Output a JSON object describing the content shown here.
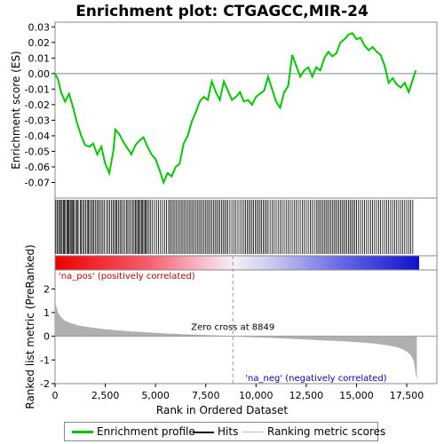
{
  "chart_data": {
    "type": "line",
    "title": "Enrichment plot: CTGAGCC,MIR-24",
    "es_panel": {
      "ylabel": "Enrichment score (ES)",
      "ylim": [
        -0.08,
        0.033
      ],
      "yticks": [
        "0.03",
        "0.02",
        "0.01",
        "0.00",
        "-0.01",
        "-0.02",
        "-0.03",
        "-0.04",
        "-0.05",
        "-0.06",
        "-0.07"
      ],
      "ytick_values": [
        0.03,
        0.02,
        0.01,
        0.0,
        -0.01,
        -0.02,
        -0.03,
        -0.04,
        -0.05,
        -0.06,
        -0.07
      ],
      "series": [
        {
          "name": "Enrichment profile",
          "color": "#00cc00",
          "x": [
            0,
            150,
            300,
            500,
            700,
            900,
            1100,
            1300,
            1500,
            1700,
            1900,
            2100,
            2300,
            2500,
            2700,
            2900,
            3000,
            3200,
            3400,
            3600,
            3800,
            4000,
            4200,
            4400,
            4600,
            4800,
            5000,
            5200,
            5400,
            5600,
            5800,
            6000,
            6200,
            6400,
            6600,
            6800,
            7000,
            7200,
            7400,
            7600,
            7800,
            8000,
            8200,
            8400,
            8600,
            8800,
            9000,
            9200,
            9400,
            9600,
            9800,
            10000,
            10200,
            10400,
            10600,
            10800,
            11000,
            11200,
            11400,
            11600,
            11800,
            12000,
            12200,
            12400,
            12600,
            12800,
            13000,
            13200,
            13400,
            13600,
            13800,
            14000,
            14200,
            14400,
            14600,
            14800,
            15000,
            15200,
            15400,
            15600,
            15800,
            16000,
            16200,
            16400,
            16600,
            16800,
            17000,
            17200,
            17400,
            17600,
            17800,
            17950
          ],
          "y": [
            0.0,
            -0.004,
            -0.012,
            -0.018,
            -0.013,
            -0.022,
            -0.032,
            -0.04,
            -0.046,
            -0.047,
            -0.045,
            -0.052,
            -0.047,
            -0.058,
            -0.064,
            -0.05,
            -0.036,
            -0.039,
            -0.044,
            -0.048,
            -0.052,
            -0.046,
            -0.043,
            -0.041,
            -0.047,
            -0.052,
            -0.055,
            -0.062,
            -0.07,
            -0.064,
            -0.066,
            -0.06,
            -0.058,
            -0.045,
            -0.04,
            -0.031,
            -0.025,
            -0.018,
            -0.015,
            -0.017,
            -0.005,
            -0.012,
            -0.017,
            -0.005,
            -0.011,
            -0.017,
            -0.015,
            -0.012,
            -0.018,
            -0.017,
            -0.02,
            -0.015,
            -0.013,
            -0.011,
            -0.002,
            -0.01,
            -0.018,
            -0.022,
            -0.012,
            -0.008,
            0.012,
            0.005,
            -0.002,
            0.002,
            0.004,
            -0.002,
            0.004,
            0.002,
            0.01,
            0.014,
            0.011,
            0.013,
            0.02,
            0.022,
            0.025,
            0.026,
            0.022,
            0.023,
            0.018,
            0.015,
            0.017,
            0.014,
            0.012,
            0.005,
            -0.006,
            -0.003,
            -0.007,
            -0.009,
            -0.006,
            -0.012,
            -0.004,
            0.002
          ]
        }
      ]
    },
    "hits": [
      40,
      110,
      180,
      230,
      300,
      350,
      420,
      470,
      520,
      600,
      640,
      690,
      750,
      800,
      850,
      900,
      960,
      1050,
      1100,
      1150,
      1250,
      1300,
      1380,
      1450,
      1520,
      1600,
      1660,
      1720,
      1800,
      1860,
      1930,
      2000,
      2080,
      2150,
      2220,
      2300,
      2380,
      2460,
      2560,
      2640,
      2720,
      2800,
      2880,
      2950,
      3020,
      3080,
      3150,
      3230,
      3300,
      3380,
      3460,
      3550,
      3620,
      3700,
      3780,
      3860,
      3930,
      4000,
      4060,
      4120,
      4180,
      4240,
      4300,
      4360,
      4420,
      4480,
      4540,
      4600,
      4680,
      4760,
      4850,
      4950,
      5050,
      5150,
      5250,
      5350,
      5450,
      5550,
      5650,
      5720,
      5800,
      5880,
      5960,
      6040,
      6120,
      6200,
      6280,
      6360,
      6440,
      6520,
      6600,
      6680,
      6760,
      6840,
      6920,
      7000,
      7080,
      7160,
      7240,
      7320,
      7400,
      7480,
      7560,
      7640,
      7720,
      7800,
      7880,
      7960,
      8040,
      8120,
      8200,
      8280,
      8360,
      8440,
      8520,
      8600,
      8700,
      8800,
      8900,
      9000,
      9100,
      9200,
      9300,
      9400,
      9480,
      9560,
      9640,
      9720,
      9800,
      9880,
      9960,
      10040,
      10120,
      10200,
      10280,
      10360,
      10440,
      10520,
      10600,
      10700,
      10800,
      10900,
      11000,
      11100,
      11200,
      11300,
      11400,
      11500,
      11600,
      11700,
      11800,
      11900,
      12000,
      12100,
      12200,
      12300,
      12400,
      12500,
      12600,
      12700,
      12800,
      12900,
      13000,
      13080,
      13160,
      13240,
      13320,
      13400,
      13480,
      13560,
      13640,
      13720,
      13800,
      13880,
      13960,
      14040,
      14120,
      14200,
      14280,
      14360,
      14440,
      14520,
      14600,
      14680,
      14760,
      14840,
      14920,
      15000,
      15100,
      15200,
      15300,
      15400,
      15500,
      15600,
      15700,
      15800,
      15900,
      16000,
      16100,
      16200,
      16300,
      16400,
      16500,
      16600,
      16700,
      16800,
      16900,
      17000,
      17100,
      17200,
      17300,
      17400,
      17500,
      17600,
      17700,
      17800
    ],
    "ranked_panel": {
      "ylabel": "Ranked list metric (PreRanked)",
      "ylim": [
        -2.0,
        2.8
      ],
      "yticks": [
        "2",
        "1",
        "0",
        "-1",
        "-2"
      ],
      "ytick_values": [
        2,
        1,
        0,
        -1,
        -2
      ],
      "x": [
        0,
        50,
        150,
        300,
        500,
        800,
        1200,
        1800,
        2500,
        3500,
        4500,
        5500,
        6500,
        7500,
        8500,
        8849,
        9500,
        10500,
        11500,
        12500,
        13500,
        14500,
        15500,
        16000,
        16500,
        17000,
        17300,
        17500,
        17700,
        17850,
        17950,
        18000
      ],
      "y": [
        1.6,
        1.3,
        1.0,
        0.8,
        0.65,
        0.55,
        0.45,
        0.37,
        0.3,
        0.22,
        0.17,
        0.12,
        0.08,
        0.05,
        0.02,
        0.0,
        -0.03,
        -0.06,
        -0.1,
        -0.14,
        -0.18,
        -0.22,
        -0.28,
        -0.32,
        -0.38,
        -0.46,
        -0.55,
        -0.65,
        -0.8,
        -1.05,
        -1.6,
        -1.85
      ],
      "color": "#b0b0b0"
    },
    "xlabel": "Rank in Ordered Dataset",
    "xlim": [
      0,
      19000
    ],
    "xticks": [
      "0",
      "2,500",
      "5,000",
      "7,500",
      "10,000",
      "12,500",
      "15,000",
      "17,500"
    ],
    "xtick_values": [
      0,
      2500,
      5000,
      7500,
      10000,
      12500,
      15000,
      17500
    ],
    "zero_cross": 8849,
    "annotations": {
      "zero_cross_text": "Zero cross at 8849",
      "pos_label": "'na_pos' (positively correlated)",
      "neg_label": "'na_neg' (negatively correlated)",
      "pos_color": "#cc0000",
      "neg_color": "#0000cc"
    },
    "legend": {
      "items": [
        {
          "label": "Enrichment profile",
          "color": "#00cc00"
        },
        {
          "label": "Hits",
          "color": "#000000"
        },
        {
          "label": "Ranking metric scores",
          "color": "#c0c0c0"
        }
      ]
    }
  }
}
